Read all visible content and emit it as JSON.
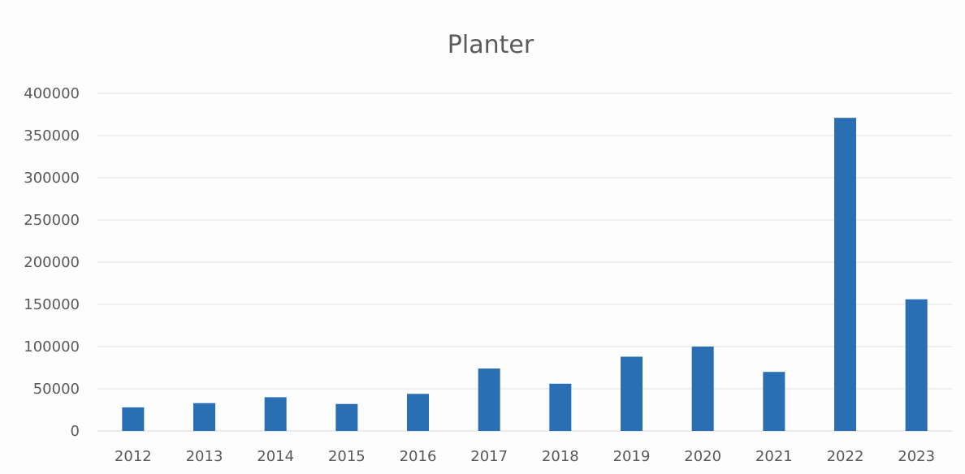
{
  "chart_data": {
    "type": "bar",
    "title": "Planter",
    "xlabel": "",
    "ylabel": "",
    "categories": [
      "2012",
      "2013",
      "2014",
      "2015",
      "2016",
      "2017",
      "2018",
      "2019",
      "2020",
      "2021",
      "2022",
      "2023"
    ],
    "values": [
      28000,
      33000,
      40000,
      32000,
      44000,
      74000,
      56000,
      88000,
      100000,
      70000,
      371000,
      156000
    ],
    "ylim": [
      0,
      400000
    ],
    "yticks": [
      0,
      50000,
      100000,
      150000,
      200000,
      250000,
      300000,
      350000,
      400000
    ],
    "grid": true,
    "legend": "none",
    "colors": {
      "bar": "#2a6fb3",
      "grid": "#e3e3e3",
      "axis": "#d9d9d9",
      "text": "#595959"
    }
  }
}
